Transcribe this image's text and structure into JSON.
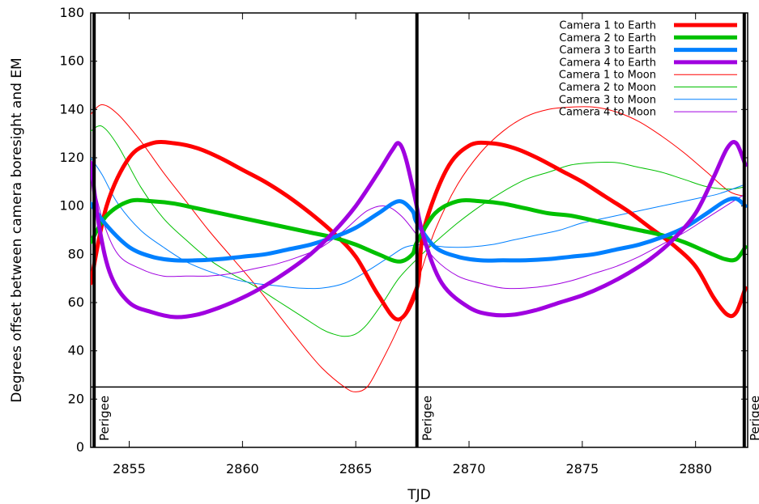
{
  "chart_data": {
    "type": "line",
    "xlabel": "TJD",
    "ylabel": "Degrees offset between camera boresight and EM",
    "xlim": [
      2853.3,
      2882.3
    ],
    "ylim": [
      0,
      180
    ],
    "xticks": [
      2855,
      2860,
      2865,
      2870,
      2875,
      2880
    ],
    "yticks": [
      0,
      20,
      40,
      60,
      80,
      100,
      120,
      140,
      160,
      180
    ],
    "legend_position": "top-right",
    "series": [
      {
        "name": "Camera 1 to Earth",
        "color": "#ff0000",
        "weight": "thick",
        "x": [
          2853.3,
          2854.0,
          2855.0,
          2856.0,
          2857.0,
          2858.0,
          2859.0,
          2860.0,
          2861.0,
          2862.0,
          2863.0,
          2864.0,
          2865.0,
          2866.0,
          2866.9,
          2867.7,
          2868.0,
          2869.0,
          2870.0,
          2871.0,
          2872.0,
          2873.0,
          2874.0,
          2875.0,
          2876.0,
          2877.0,
          2878.0,
          2879.0,
          2880.0,
          2880.8,
          2881.4,
          2881.8,
          2882.2
        ],
        "y": [
          68,
          100,
          120,
          126,
          126,
          124,
          120,
          115,
          110,
          104,
          97,
          89,
          79,
          63,
          53,
          66,
          90,
          115,
          125,
          126,
          124,
          120,
          115,
          110,
          104,
          98,
          91,
          84,
          75,
          62,
          55,
          56,
          66
        ]
      },
      {
        "name": "Camera 2 to Earth",
        "color": "#00c000",
        "weight": "thick",
        "x": [
          2853.3,
          2854.0,
          2855.0,
          2856.0,
          2857.0,
          2858.0,
          2859.0,
          2860.0,
          2861.0,
          2862.0,
          2863.0,
          2864.0,
          2865.0,
          2866.0,
          2866.9,
          2867.5,
          2867.7,
          2868.5,
          2869.5,
          2870.5,
          2871.5,
          2872.5,
          2873.5,
          2874.5,
          2875.5,
          2876.5,
          2877.5,
          2878.5,
          2879.5,
          2880.5,
          2881.3,
          2881.8,
          2882.2
        ],
        "y": [
          85,
          96,
          102,
          102,
          101,
          99,
          97,
          95,
          93,
          91,
          89,
          87,
          84,
          80,
          77,
          80,
          85,
          97,
          102,
          102,
          101,
          99,
          97,
          96,
          94,
          92,
          90,
          88,
          85,
          81,
          78,
          78,
          83
        ]
      },
      {
        "name": "Camera 3 to Earth",
        "color": "#0080ff",
        "weight": "thick",
        "x": [
          2853.3,
          2854.0,
          2855.0,
          2856.0,
          2857.0,
          2858.0,
          2859.0,
          2860.0,
          2861.0,
          2862.0,
          2863.0,
          2864.0,
          2865.0,
          2866.0,
          2866.9,
          2867.5,
          2867.7,
          2868.5,
          2869.5,
          2870.5,
          2871.5,
          2872.5,
          2873.5,
          2874.5,
          2875.5,
          2876.5,
          2877.5,
          2878.5,
          2879.5,
          2880.5,
          2881.3,
          2881.8,
          2882.2
        ],
        "y": [
          101,
          92,
          83,
          79,
          77.5,
          77.5,
          78,
          79,
          80,
          82,
          84,
          87,
          91,
          97,
          102,
          98,
          93,
          83,
          79,
          77.5,
          77.5,
          77.5,
          78,
          79,
          80,
          82,
          84,
          87,
          91,
          97,
          102,
          103,
          100
        ]
      },
      {
        "name": "Camera 4 to Earth",
        "color": "#a000e0",
        "weight": "thick",
        "x": [
          2853.3,
          2853.7,
          2854.2,
          2855.0,
          2856.0,
          2857.0,
          2858.0,
          2859.0,
          2860.0,
          2861.0,
          2862.0,
          2863.0,
          2864.0,
          2865.0,
          2866.0,
          2866.6,
          2866.9,
          2867.2,
          2867.6,
          2868.0,
          2868.8,
          2870.0,
          2871.0,
          2872.0,
          2873.0,
          2874.0,
          2875.0,
          2876.0,
          2877.0,
          2878.0,
          2879.0,
          2880.0,
          2880.8,
          2881.4,
          2881.8,
          2882.2
        ],
        "y": [
          118,
          90,
          71,
          60,
          56,
          54,
          55,
          58,
          62,
          67,
          73,
          80,
          89,
          100,
          114,
          123,
          126,
          120,
          104,
          87,
          68,
          58,
          55,
          55,
          57,
          60,
          63,
          67,
          72,
          78,
          86,
          97,
          112,
          124,
          126,
          117
        ]
      },
      {
        "name": "Camera 1 to Moon",
        "color": "#ff0000",
        "weight": "thin",
        "x": [
          2853.3,
          2853.8,
          2854.5,
          2855.5,
          2856.5,
          2857.5,
          2858.5,
          2859.5,
          2860.5,
          2861.5,
          2862.5,
          2863.5,
          2864.5,
          2865.0,
          2865.5,
          2866.0,
          2866.8,
          2867.7,
          2868.5,
          2869.5,
          2870.5,
          2871.5,
          2872.5,
          2873.5,
          2874.5,
          2875.5,
          2876.5,
          2877.5,
          2878.5,
          2879.5,
          2880.5,
          2881.5,
          2882.2
        ],
        "y": [
          138,
          142,
          138,
          127,
          114,
          102,
          90,
          79,
          68,
          56,
          44,
          33,
          25,
          23,
          25,
          33,
          48,
          68,
          90,
          109,
          122,
          131,
          137,
          140,
          141,
          141,
          139,
          135,
          129,
          122,
          114,
          106,
          104
        ]
      },
      {
        "name": "Camera 2 to Moon",
        "color": "#00c000",
        "weight": "thin",
        "x": [
          2853.3,
          2853.8,
          2854.5,
          2855.5,
          2856.5,
          2857.5,
          2858.5,
          2859.5,
          2860.5,
          2861.5,
          2862.5,
          2863.5,
          2864.0,
          2864.5,
          2865.0,
          2865.5,
          2866.2,
          2866.9,
          2867.7,
          2868.5,
          2869.5,
          2870.5,
          2871.5,
          2872.5,
          2873.5,
          2874.5,
          2875.5,
          2876.5,
          2877.5,
          2878.5,
          2879.5,
          2880.5,
          2881.5,
          2882.2
        ],
        "y": [
          131,
          133,
          125,
          108,
          95,
          86,
          78,
          72,
          67,
          61,
          55,
          49,
          47,
          46,
          47,
          51,
          60,
          70,
          78,
          85,
          93,
          100,
          106,
          111,
          114,
          117,
          118,
          118,
          116,
          114,
          111,
          108,
          107,
          108
        ]
      },
      {
        "name": "Camera 3 to Moon",
        "color": "#0080ff",
        "weight": "thin",
        "x": [
          2853.3,
          2853.8,
          2854.5,
          2855.5,
          2856.5,
          2857.5,
          2858.5,
          2859.5,
          2860.5,
          2861.5,
          2862.5,
          2863.5,
          2864.5,
          2865.5,
          2866.5,
          2867.2,
          2868.0,
          2869.0,
          2870.0,
          2871.0,
          2872.0,
          2873.0,
          2874.0,
          2875.0,
          2876.0,
          2877.0,
          2878.0,
          2879.0,
          2880.0,
          2881.0,
          2882.2
        ],
        "y": [
          120,
          113,
          101,
          90,
          83,
          77,
          73,
          70,
          68,
          67,
          66,
          66,
          68,
          73,
          79,
          83,
          84,
          83,
          83,
          84,
          86,
          88,
          90,
          93,
          95,
          97,
          99,
          101,
          103,
          105,
          109
        ]
      },
      {
        "name": "Camera 4 to Moon",
        "color": "#a000e0",
        "weight": "thin",
        "x": [
          2853.3,
          2853.8,
          2854.5,
          2855.5,
          2856.5,
          2857.5,
          2858.5,
          2859.5,
          2860.5,
          2861.5,
          2862.5,
          2863.5,
          2864.5,
          2865.5,
          2866.3,
          2867.0,
          2867.7,
          2868.5,
          2869.5,
          2870.5,
          2871.5,
          2872.5,
          2873.5,
          2874.5,
          2875.5,
          2876.5,
          2877.5,
          2878.5,
          2879.5,
          2880.5,
          2881.5,
          2882.2
        ],
        "y": [
          115,
          95,
          80,
          74,
          71,
          71,
          71,
          72,
          74,
          76,
          79,
          83,
          90,
          98,
          100,
          96,
          88,
          78,
          71,
          68,
          66,
          66,
          67,
          69,
          72,
          75,
          79,
          84,
          89,
          95,
          101,
          105
        ]
      }
    ],
    "vertical_lines": [
      2853.45,
      2867.7,
      2882.15
    ],
    "reference_line": {
      "y": 25
    },
    "annotations": [
      {
        "text": "Perigee",
        "x": 2853.45
      },
      {
        "text": "Perigee",
        "x": 2867.7
      },
      {
        "text": "Perigee",
        "x": 2882.15
      }
    ]
  }
}
